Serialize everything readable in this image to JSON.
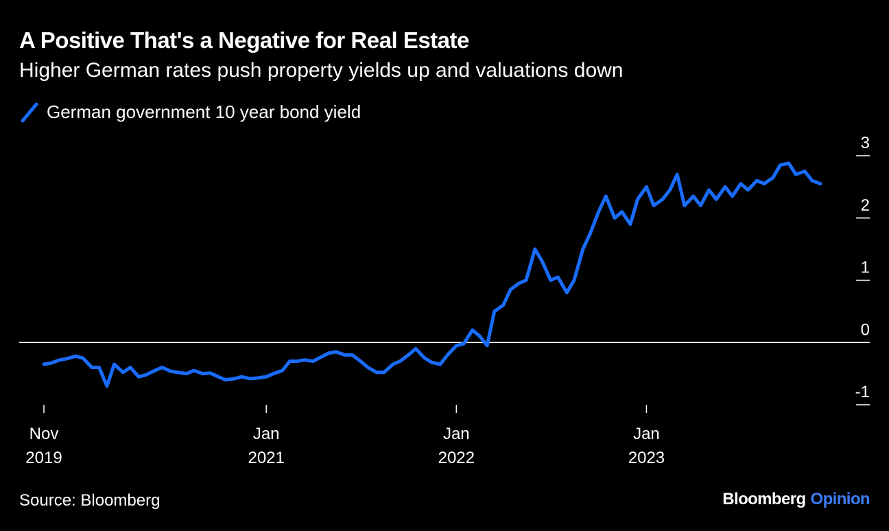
{
  "header": {
    "title": "A Positive That's a Negative for Real Estate",
    "subtitle": "Higher German rates push property yields up and valuations down"
  },
  "footer": {
    "source": "Source: Bloomberg",
    "brand_primary": "Bloomberg",
    "brand_secondary": "Opinion"
  },
  "colors": {
    "background": "#000000",
    "series": "#1a6cff",
    "axis": "#ffffff",
    "brand_accent": "#3d7cf5"
  },
  "chart_data": {
    "type": "line",
    "title": "A Positive That's a Negative for Real Estate",
    "subtitle": "Higher German rates push property yields up and valuations down",
    "xlabel": "",
    "ylabel": "",
    "ylim": [
      -1,
      3
    ],
    "grid": false,
    "zero_line": true,
    "legend_position": "top-left",
    "x_range": [
      "2019-11-01",
      "2023-12-01"
    ],
    "y_ticks": [
      {
        "value": 3,
        "label": "3"
      },
      {
        "value": 2,
        "label": "2"
      },
      {
        "value": 1,
        "label": "1"
      },
      {
        "value": 0,
        "label": "0"
      },
      {
        "value": -1,
        "label": "-1"
      }
    ],
    "x_ticks": [
      {
        "date": "2019-11-01",
        "line1": "Nov",
        "line2": "2019"
      },
      {
        "date": "2021-01-01",
        "line1": "Jan",
        "line2": "2021"
      },
      {
        "date": "2022-01-01",
        "line1": "Jan",
        "line2": "2022"
      },
      {
        "date": "2023-01-01",
        "line1": "Jan",
        "line2": "2023"
      }
    ],
    "series": [
      {
        "name": "German government 10 year bond yield",
        "color": "#1a6cff",
        "points": [
          [
            "2019-11-01",
            -0.35
          ],
          [
            "2019-11-15",
            -0.33
          ],
          [
            "2019-12-01",
            -0.28
          ],
          [
            "2019-12-15",
            -0.26
          ],
          [
            "2020-01-01",
            -0.22
          ],
          [
            "2020-01-15",
            -0.25
          ],
          [
            "2020-02-01",
            -0.4
          ],
          [
            "2020-02-15",
            -0.4
          ],
          [
            "2020-03-01",
            -0.7
          ],
          [
            "2020-03-15",
            -0.35
          ],
          [
            "2020-04-01",
            -0.48
          ],
          [
            "2020-04-15",
            -0.4
          ],
          [
            "2020-05-01",
            -0.55
          ],
          [
            "2020-05-15",
            -0.52
          ],
          [
            "2020-06-01",
            -0.45
          ],
          [
            "2020-06-15",
            -0.4
          ],
          [
            "2020-07-01",
            -0.46
          ],
          [
            "2020-07-15",
            -0.48
          ],
          [
            "2020-08-01",
            -0.5
          ],
          [
            "2020-08-15",
            -0.45
          ],
          [
            "2020-09-01",
            -0.5
          ],
          [
            "2020-09-15",
            -0.49
          ],
          [
            "2020-10-01",
            -0.55
          ],
          [
            "2020-10-15",
            -0.6
          ],
          [
            "2020-11-01",
            -0.58
          ],
          [
            "2020-11-15",
            -0.55
          ],
          [
            "2020-12-01",
            -0.58
          ],
          [
            "2020-12-15",
            -0.57
          ],
          [
            "2021-01-01",
            -0.55
          ],
          [
            "2021-01-15",
            -0.5
          ],
          [
            "2021-02-01",
            -0.45
          ],
          [
            "2021-02-15",
            -0.3
          ],
          [
            "2021-03-01",
            -0.3
          ],
          [
            "2021-03-15",
            -0.28
          ],
          [
            "2021-04-01",
            -0.3
          ],
          [
            "2021-04-15",
            -0.24
          ],
          [
            "2021-05-01",
            -0.17
          ],
          [
            "2021-05-15",
            -0.15
          ],
          [
            "2021-06-01",
            -0.2
          ],
          [
            "2021-06-15",
            -0.2
          ],
          [
            "2021-07-01",
            -0.3
          ],
          [
            "2021-07-15",
            -0.4
          ],
          [
            "2021-08-01",
            -0.48
          ],
          [
            "2021-08-15",
            -0.48
          ],
          [
            "2021-09-01",
            -0.35
          ],
          [
            "2021-09-15",
            -0.3
          ],
          [
            "2021-10-01",
            -0.2
          ],
          [
            "2021-10-15",
            -0.1
          ],
          [
            "2021-11-01",
            -0.25
          ],
          [
            "2021-11-15",
            -0.32
          ],
          [
            "2021-12-01",
            -0.35
          ],
          [
            "2021-12-15",
            -0.2
          ],
          [
            "2022-01-01",
            -0.05
          ],
          [
            "2022-01-15",
            -0.02
          ],
          [
            "2022-02-01",
            0.2
          ],
          [
            "2022-02-15",
            0.1
          ],
          [
            "2022-03-01",
            -0.05
          ],
          [
            "2022-03-15",
            0.5
          ],
          [
            "2022-04-01",
            0.6
          ],
          [
            "2022-04-15",
            0.85
          ],
          [
            "2022-05-01",
            0.95
          ],
          [
            "2022-05-15",
            1.0
          ],
          [
            "2022-06-01",
            1.5
          ],
          [
            "2022-06-15",
            1.3
          ],
          [
            "2022-07-01",
            1.0
          ],
          [
            "2022-07-15",
            1.05
          ],
          [
            "2022-08-01",
            0.8
          ],
          [
            "2022-08-15",
            1.0
          ],
          [
            "2022-09-01",
            1.5
          ],
          [
            "2022-09-15",
            1.75
          ],
          [
            "2022-10-01",
            2.1
          ],
          [
            "2022-10-15",
            2.35
          ],
          [
            "2022-11-01",
            2.0
          ],
          [
            "2022-11-15",
            2.1
          ],
          [
            "2022-12-01",
            1.9
          ],
          [
            "2022-12-15",
            2.3
          ],
          [
            "2023-01-01",
            2.5
          ],
          [
            "2023-01-15",
            2.2
          ],
          [
            "2023-02-01",
            2.3
          ],
          [
            "2023-02-15",
            2.45
          ],
          [
            "2023-03-01",
            2.7
          ],
          [
            "2023-03-15",
            2.2
          ],
          [
            "2023-04-01",
            2.35
          ],
          [
            "2023-04-15",
            2.2
          ],
          [
            "2023-05-01",
            2.45
          ],
          [
            "2023-05-15",
            2.3
          ],
          [
            "2023-06-01",
            2.5
          ],
          [
            "2023-06-15",
            2.35
          ],
          [
            "2023-07-01",
            2.55
          ],
          [
            "2023-07-15",
            2.45
          ],
          [
            "2023-08-01",
            2.6
          ],
          [
            "2023-08-15",
            2.55
          ],
          [
            "2023-09-01",
            2.65
          ],
          [
            "2023-09-15",
            2.85
          ],
          [
            "2023-10-01",
            2.88
          ],
          [
            "2023-10-15",
            2.7
          ],
          [
            "2023-11-01",
            2.75
          ],
          [
            "2023-11-15",
            2.6
          ],
          [
            "2023-12-01",
            2.55
          ]
        ]
      }
    ]
  }
}
